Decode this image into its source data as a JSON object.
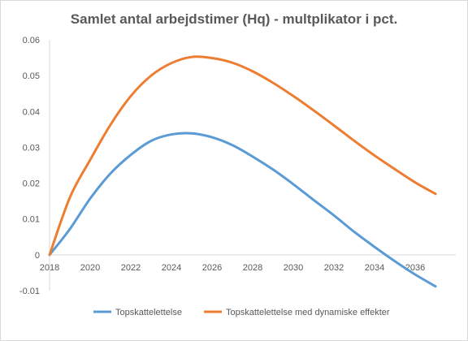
{
  "chart_data": {
    "type": "line",
    "title": "Samlet antal arbejdstimer (Hq) - multplikator i pct.",
    "xlabel": "",
    "ylabel": "",
    "x": [
      2018,
      2019,
      2020,
      2021,
      2022,
      2023,
      2024,
      2025,
      2026,
      2027,
      2028,
      2029,
      2030,
      2031,
      2032,
      2033,
      2034,
      2035,
      2036,
      2037
    ],
    "x_ticks": [
      "2018",
      "2020",
      "2022",
      "2024",
      "2026",
      "2028",
      "2030",
      "2032",
      "2034",
      "2036"
    ],
    "y_ticks": [
      "-0.01",
      "0",
      "0.01",
      "0.02",
      "0.03",
      "0.04",
      "0.05",
      "0.06"
    ],
    "xlim": [
      2018,
      2038
    ],
    "ylim": [
      -0.01,
      0.06
    ],
    "grid": false,
    "legend_position": "bottom",
    "series": [
      {
        "name": "Topskattelettelse",
        "color": "#5b9bd5",
        "values": [
          0.0,
          0.0072,
          0.0157,
          0.0227,
          0.0279,
          0.0318,
          0.0336,
          0.0339,
          0.0328,
          0.0306,
          0.0274,
          0.0238,
          0.0197,
          0.0153,
          0.011,
          0.0064,
          0.0022,
          -0.0018,
          -0.0055,
          -0.0088
        ]
      },
      {
        "name": "Topskattelettelse med dynamiske effekter",
        "color": "#ed7d31",
        "values": [
          0.0,
          0.016,
          0.0265,
          0.0363,
          0.0443,
          0.05,
          0.0535,
          0.0552,
          0.0549,
          0.0536,
          0.0512,
          0.048,
          0.0443,
          0.0403,
          0.0361,
          0.0318,
          0.0277,
          0.0239,
          0.0202,
          0.017
        ]
      }
    ]
  }
}
